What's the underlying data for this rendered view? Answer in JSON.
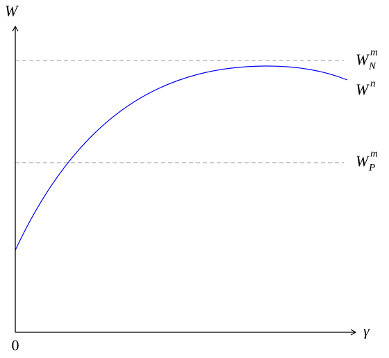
{
  "axes": {
    "y_label": "W",
    "x_label": "γ",
    "origin_label": "0"
  },
  "labels": [
    {
      "base": "W",
      "sub": "N",
      "sup": "m"
    },
    {
      "base": "W",
      "sup": "n"
    },
    {
      "base": "W",
      "sub": "P",
      "sup": "m"
    }
  ]
}
